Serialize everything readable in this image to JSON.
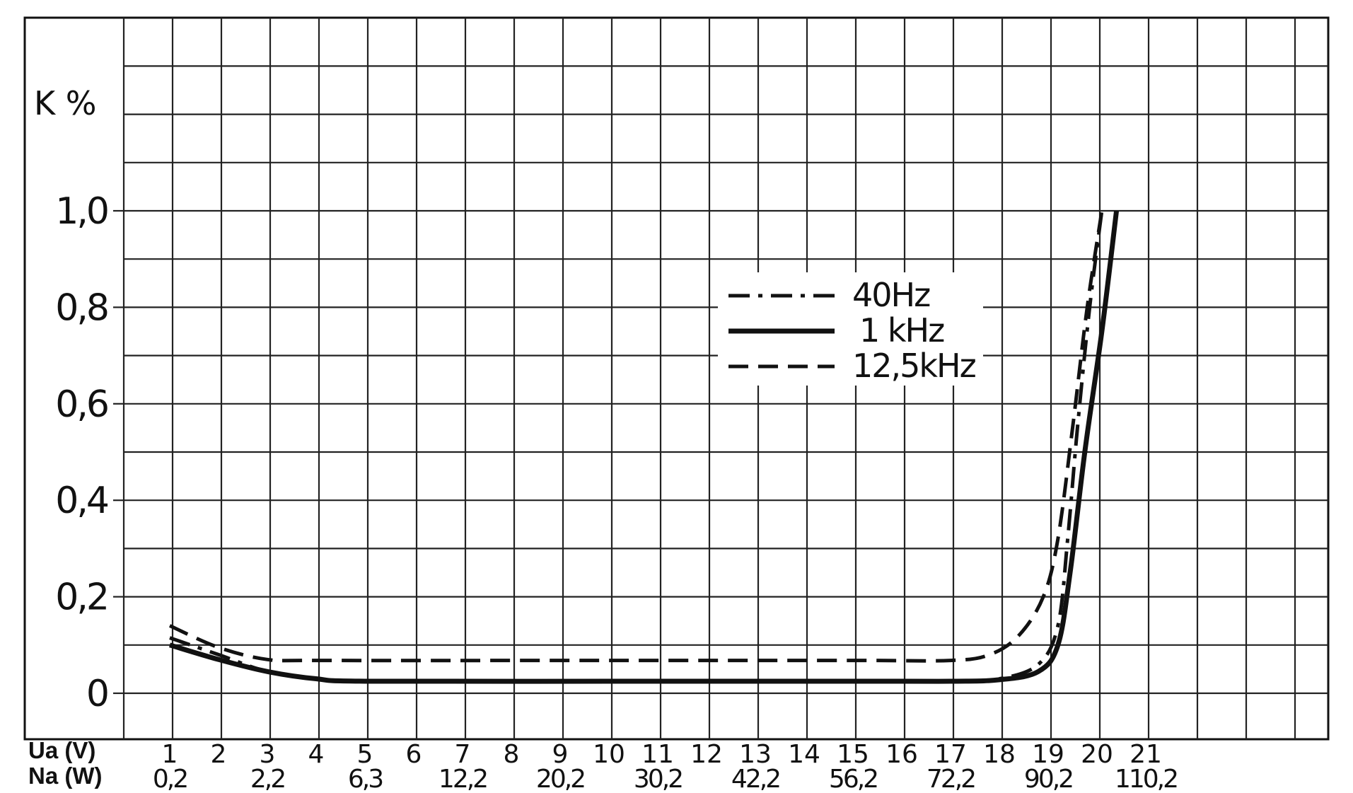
{
  "chart_data": {
    "type": "line",
    "title": "",
    "ylabel": "K %",
    "xlabel_top": "Ua (V)",
    "xlabel_bottom": "Na (W)",
    "x_ticks_ua": [
      "1",
      "2",
      "3",
      "4",
      "5",
      "6",
      "7",
      "8",
      "9",
      "10",
      "11",
      "12",
      "13",
      "14",
      "15",
      "16",
      "17",
      "18",
      "19",
      "20",
      "21"
    ],
    "x_ticks_na": [
      {
        "ua": 1,
        "label": "0,2"
      },
      {
        "ua": 3,
        "label": "2,2"
      },
      {
        "ua": 5,
        "label": "6,3"
      },
      {
        "ua": 7,
        "label": "12,2"
      },
      {
        "ua": 9,
        "label": "20,2"
      },
      {
        "ua": 11,
        "label": "30,2"
      },
      {
        "ua": 13,
        "label": "42,2"
      },
      {
        "ua": 15,
        "label": "56,2"
      },
      {
        "ua": 17,
        "label": "72,2"
      },
      {
        "ua": 19,
        "label": "90,2"
      },
      {
        "ua": 21,
        "label": "110,2"
      }
    ],
    "y_ticks": [
      {
        "value": 0,
        "label": "0"
      },
      {
        "value": 0.2,
        "label": "0,2"
      },
      {
        "value": 0.4,
        "label": "0,4"
      },
      {
        "value": 0.6,
        "label": "0,6"
      },
      {
        "value": 0.8,
        "label": "0,8"
      },
      {
        "value": 1.0,
        "label": "1,0"
      }
    ],
    "xlim": [
      1,
      21
    ],
    "ylim": [
      0,
      1.0
    ],
    "grid": true,
    "legend_position": "center-right",
    "series": [
      {
        "name": "40Hz",
        "style": "dashdot",
        "points": [
          [
            1,
            0.115
          ],
          [
            2,
            0.08
          ],
          [
            3,
            0.045
          ],
          [
            4,
            0.03
          ],
          [
            5,
            0.025
          ],
          [
            10,
            0.025
          ],
          [
            15,
            0.025
          ],
          [
            17,
            0.025
          ],
          [
            18,
            0.03
          ],
          [
            18.8,
            0.06
          ],
          [
            19.2,
            0.14
          ],
          [
            19.4,
            0.32
          ],
          [
            19.6,
            0.55
          ],
          [
            19.85,
            0.8
          ],
          [
            20.1,
            1.0
          ]
        ]
      },
      {
        "name": "1 kHz",
        "style": "solid",
        "points": [
          [
            1,
            0.1
          ],
          [
            2,
            0.07
          ],
          [
            3,
            0.045
          ],
          [
            4,
            0.03
          ],
          [
            5,
            0.025
          ],
          [
            10,
            0.025
          ],
          [
            15,
            0.025
          ],
          [
            17,
            0.025
          ],
          [
            18,
            0.028
          ],
          [
            18.8,
            0.045
          ],
          [
            19.2,
            0.1
          ],
          [
            19.45,
            0.25
          ],
          [
            19.75,
            0.5
          ],
          [
            20.1,
            0.75
          ],
          [
            20.4,
            1.0
          ]
        ]
      },
      {
        "name": "12,5kHz",
        "style": "dashed",
        "points": [
          [
            1,
            0.14
          ],
          [
            2,
            0.095
          ],
          [
            3,
            0.07
          ],
          [
            4,
            0.068
          ],
          [
            10,
            0.068
          ],
          [
            15,
            0.068
          ],
          [
            17,
            0.068
          ],
          [
            17.8,
            0.08
          ],
          [
            18.4,
            0.12
          ],
          [
            18.9,
            0.2
          ],
          [
            19.2,
            0.32
          ],
          [
            19.5,
            0.55
          ],
          [
            19.8,
            0.8
          ],
          [
            20.1,
            1.0
          ]
        ]
      }
    ]
  }
}
